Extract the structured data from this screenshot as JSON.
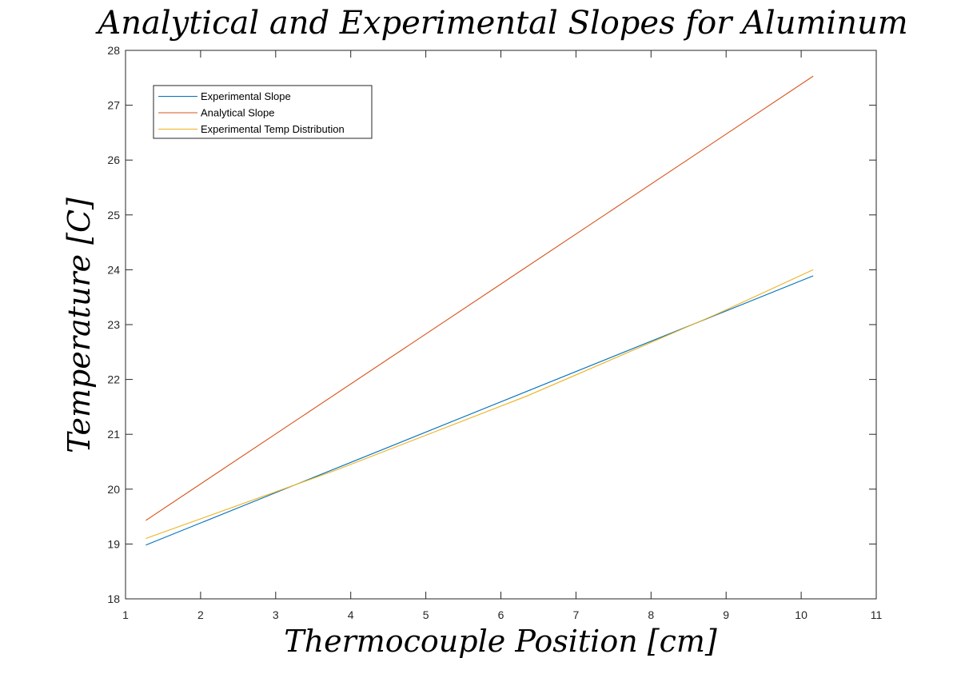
{
  "chart_data": {
    "type": "line",
    "title": "Analytical and Experimental Slopes for Aluminum",
    "xlabel": "Thermocouple Position [cm]",
    "ylabel": "Temperature [C]",
    "xlim": [
      1,
      11
    ],
    "ylim": [
      18,
      28
    ],
    "xticks": [
      "1",
      "2",
      "3",
      "4",
      "5",
      "6",
      "7",
      "8",
      "9",
      "10",
      "11"
    ],
    "yticks": [
      "18",
      "19",
      "20",
      "21",
      "22",
      "23",
      "24",
      "25",
      "26",
      "27",
      "28"
    ],
    "grid": false,
    "legend_position": "top-left",
    "series": [
      {
        "name": "Experimental Slope",
        "color": "#0072BD",
        "x": [
          1.27,
          10.16
        ],
        "y": [
          18.98,
          23.89
        ]
      },
      {
        "name": "Analytical Slope",
        "color": "#D95319",
        "x": [
          1.27,
          10.16
        ],
        "y": [
          19.43,
          27.53
        ]
      },
      {
        "name": "Experimental Temp Distribution",
        "color": "#EDB120",
        "x": [
          1.27,
          3.81,
          6.35,
          8.89,
          10.16
        ],
        "y": [
          19.1,
          20.35,
          21.7,
          23.2,
          24.0
        ]
      }
    ]
  }
}
